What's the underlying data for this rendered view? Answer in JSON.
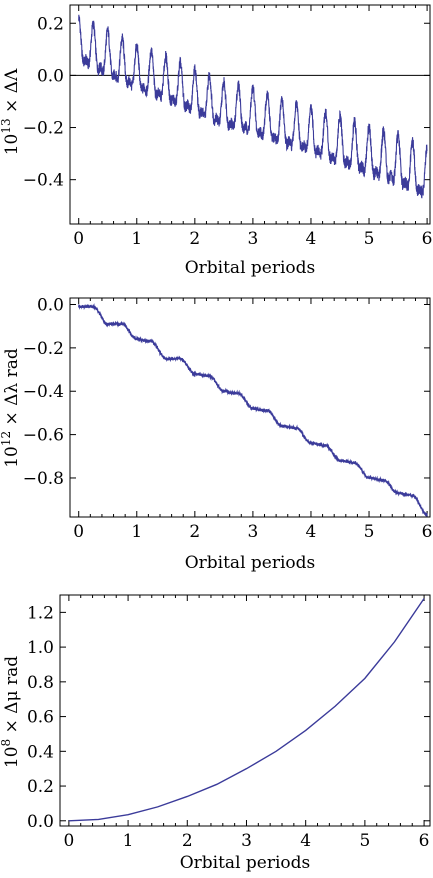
{
  "chart_data": [
    {
      "type": "line",
      "panel": "top",
      "xlabel": "Orbital periods",
      "ylabel_parts": {
        "base": "10",
        "exp": "13",
        "rest": " × ΔΛ"
      },
      "xlim": [
        -0.15,
        6.05
      ],
      "ylim": [
        -0.57,
        0.27
      ],
      "x_ticks": [
        0,
        1,
        2,
        3,
        4,
        5,
        6
      ],
      "x_tick_labels": [
        "0",
        "1",
        "2",
        "3",
        "4",
        "5",
        "6"
      ],
      "y_ticks": [
        0.2,
        0.0,
        -0.2,
        -0.4
      ],
      "y_tick_labels": [
        "0.2",
        "0.0",
        "−0.2",
        "−0.4"
      ],
      "zero_line": true,
      "color": "#3b3b9a",
      "series": [
        {
          "description_x": [
            0.0,
            0.5,
            1.0,
            1.5,
            2.0,
            2.5,
            3.0,
            3.5,
            4.0,
            4.5,
            5.0,
            5.5,
            6.0
          ],
          "upper_envelope": [
            0.25,
            0.2,
            0.14,
            0.1,
            0.05,
            0.0,
            -0.02,
            -0.07,
            -0.1,
            -0.13,
            -0.17,
            -0.2,
            -0.25
          ],
          "lower_envelope": [
            -0.02,
            -0.08,
            -0.13,
            -0.17,
            -0.22,
            -0.27,
            -0.3,
            -0.34,
            -0.37,
            -0.42,
            -0.46,
            -0.5,
            -0.55
          ],
          "oscillation_period": 0.25
        }
      ]
    },
    {
      "type": "line",
      "panel": "middle",
      "xlabel": "Orbital periods",
      "ylabel_parts": {
        "base": "10",
        "exp": "12",
        "rest": " × Δλ rad"
      },
      "xlim": [
        -0.15,
        6.05
      ],
      "ylim": [
        -0.98,
        0.03
      ],
      "x_ticks": [
        0,
        1,
        2,
        3,
        4,
        5,
        6
      ],
      "x_tick_labels": [
        "0",
        "1",
        "2",
        "3",
        "4",
        "5",
        "6"
      ],
      "y_ticks": [
        0.0,
        -0.2,
        -0.4,
        -0.6,
        -0.8
      ],
      "y_tick_labels": [
        "0.0",
        "−0.2",
        "−0.4",
        "−0.6",
        "−0.8"
      ],
      "color": "#3b3b9a",
      "series": [
        {
          "x": [
            0.0,
            0.25,
            0.5,
            0.75,
            1.0,
            1.25,
            1.5,
            1.75,
            2.0,
            2.25,
            2.5,
            2.75,
            3.0,
            3.25,
            3.5,
            3.75,
            4.0,
            4.25,
            4.5,
            4.75,
            5.0,
            5.25,
            5.5,
            5.75,
            6.0
          ],
          "steps_value": [
            -0.01,
            -0.01,
            -0.09,
            -0.09,
            -0.16,
            -0.17,
            -0.25,
            -0.25,
            -0.32,
            -0.33,
            -0.4,
            -0.41,
            -0.48,
            -0.49,
            -0.56,
            -0.57,
            -0.64,
            -0.65,
            -0.72,
            -0.73,
            -0.8,
            -0.81,
            -0.87,
            -0.88,
            -0.97
          ]
        }
      ]
    },
    {
      "type": "line",
      "panel": "bottom",
      "xlabel": "Orbital periods",
      "ylabel_parts": {
        "base": "10",
        "exp": "8",
        "rest": " × Δμ rad"
      },
      "xlim": [
        -0.15,
        6.1
      ],
      "ylim": [
        -0.03,
        1.3
      ],
      "x_ticks": [
        0,
        1,
        2,
        3,
        4,
        5,
        6
      ],
      "x_tick_labels": [
        "0",
        "1",
        "2",
        "3",
        "4",
        "5",
        "6"
      ],
      "y_ticks": [
        0.0,
        0.2,
        0.4,
        0.6,
        0.8,
        1.0,
        1.2
      ],
      "y_tick_labels": [
        "0.0",
        "0.2",
        "0.4",
        "0.6",
        "0.8",
        "1.0",
        "1.2"
      ],
      "color": "#3b3b9a",
      "series": [
        {
          "x": [
            0,
            0.5,
            1,
            1.5,
            2,
            2.5,
            3,
            3.5,
            4,
            4.5,
            5,
            5.5,
            6
          ],
          "y": [
            0.0,
            0.008,
            0.035,
            0.08,
            0.14,
            0.21,
            0.3,
            0.4,
            0.52,
            0.66,
            0.82,
            1.03,
            1.28
          ]
        }
      ]
    }
  ]
}
